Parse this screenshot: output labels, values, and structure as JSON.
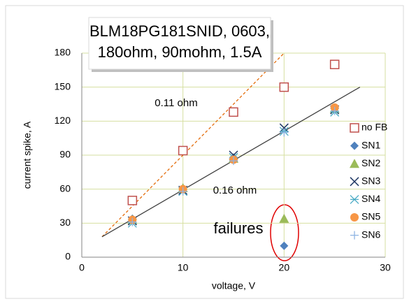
{
  "chart_data": {
    "type": "scatter",
    "title_lines": [
      "BLM18PG181SNID,  0603,",
      "180ohm, 90mohm, 1.5A"
    ],
    "xlabel": "voltage, V",
    "ylabel": "current spike, A",
    "xlim": [
      0,
      30
    ],
    "ylim": [
      0,
      180
    ],
    "xticks": [
      0,
      10,
      20,
      30
    ],
    "yticks": [
      0,
      30,
      60,
      90,
      120,
      150,
      180
    ],
    "grid": true,
    "legend": "right",
    "annotations": [
      "0.11 ohm",
      "0.16 ohm",
      "failures"
    ],
    "trendlines": [
      {
        "color": "#e46c0a",
        "dashed": true,
        "x": [
          2,
          20
        ],
        "y": [
          18,
          180
        ]
      },
      {
        "color": "#404040",
        "dashed": false,
        "x": [
          2,
          27.5
        ],
        "y": [
          18,
          150
        ]
      }
    ],
    "series": [
      {
        "name": "no FB",
        "color": "#c0504d",
        "marker": "square-open",
        "x": [
          5,
          10,
          15,
          20,
          25
        ],
        "values": [
          50,
          94,
          128,
          150,
          170
        ]
      },
      {
        "name": "SN1",
        "color": "#4f81bd",
        "marker": "diamond",
        "x": [
          5,
          10,
          15,
          20,
          25
        ],
        "values": [
          34,
          60,
          88,
          10,
          131
        ]
      },
      {
        "name": "SN2",
        "color": "#9bbb59",
        "marker": "triangle",
        "x": [
          5,
          10,
          15,
          20,
          25
        ],
        "values": [
          33,
          61,
          87,
          34,
          131
        ]
      },
      {
        "name": "SN3",
        "color": "#1f3864",
        "marker": "x",
        "x": [
          5,
          10,
          15,
          20,
          25
        ],
        "values": [
          32,
          59,
          90,
          114,
          130
        ]
      },
      {
        "name": "SN4",
        "color": "#4bacc6",
        "marker": "star",
        "x": [
          5,
          10,
          15,
          20,
          25
        ],
        "values": [
          30,
          58,
          88,
          111,
          128
        ]
      },
      {
        "name": "SN5",
        "color": "#f79646",
        "marker": "circle",
        "x": [
          5,
          10,
          15,
          20,
          25
        ],
        "values": [
          33,
          60,
          86,
          null,
          132
        ]
      },
      {
        "name": "SN6",
        "color": "#8eb4e3",
        "marker": "plus",
        "x": [
          5,
          10,
          15,
          20,
          25
        ],
        "values": [
          31,
          58,
          85,
          110,
          129
        ]
      }
    ]
  }
}
